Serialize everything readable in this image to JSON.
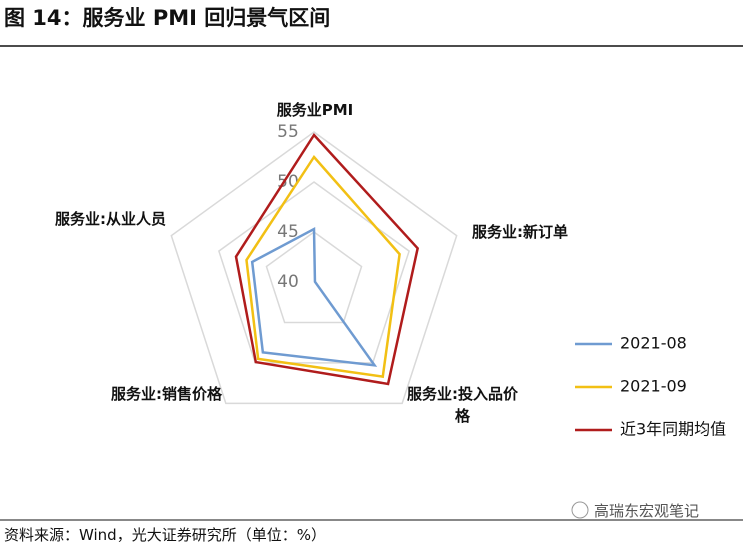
{
  "header": {
    "title": "图 14：服务业 PMI 回归景气区间"
  },
  "chart_data": {
    "type": "radar",
    "categories": [
      "服务业PMI",
      "服务业:新订单",
      "服务业:投入品价格",
      "服务业:销售价格",
      "服务业:从业人员"
    ],
    "rlim": [
      40,
      55
    ],
    "rticks": [
      40,
      45,
      50,
      55
    ],
    "grid": true,
    "legend": "right",
    "series": [
      {
        "name": "2021-08",
        "color": "#6f9bd1",
        "values": [
          45.3,
          40.1,
          50.3,
          48.7,
          46.5
        ]
      },
      {
        "name": "2021-09",
        "color": "#f2c014",
        "values": [
          52.5,
          49.0,
          51.7,
          49.5,
          47.1
        ]
      },
      {
        "name": "近3年同期均值",
        "color": "#b01c1c",
        "values": [
          54.7,
          50.9,
          52.6,
          49.9,
          48.2
        ]
      }
    ]
  },
  "footer": {
    "source": "资料来源：Wind，光大证券研究所（单位：%）",
    "watermark": "高瑞东宏观笔记"
  }
}
